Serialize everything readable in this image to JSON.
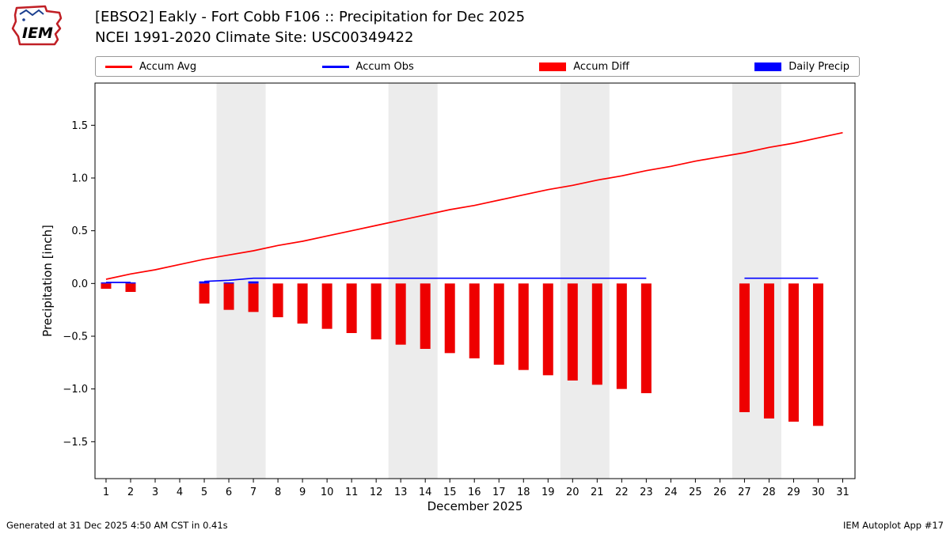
{
  "header": {
    "logo_text": "IEM",
    "title_line1": "[EBSO2] Eakly - Fort Cobb F106 :: Precipitation for Dec 2025",
    "title_line2": "NCEI 1991-2020 Climate Site: USC00349422"
  },
  "legend": {
    "items": [
      {
        "label": "Accum Avg",
        "type": "line",
        "color": "#ff0000"
      },
      {
        "label": "Accum Obs",
        "type": "line",
        "color": "#0000ff"
      },
      {
        "label": "Accum Diff",
        "type": "bar",
        "color": "#ff0000"
      },
      {
        "label": "Daily Precip",
        "type": "bar",
        "color": "#0000ff"
      }
    ]
  },
  "chart_data": {
    "type": "mixed",
    "title": "[EBSO2] Eakly - Fort Cobb F106 :: Precipitation for Dec 2025",
    "subtitle": "NCEI 1991-2020 Climate Site: USC00349422",
    "xlabel": "December 2025",
    "ylabel": "Precipitation [inch]",
    "ylim": [
      -1.85,
      1.9
    ],
    "yticks": [
      {
        "v": -1.5,
        "label": "−1.5"
      },
      {
        "v": -1.0,
        "label": "−1.0"
      },
      {
        "v": -0.5,
        "label": "−0.5"
      },
      {
        "v": 0.0,
        "label": "0.0"
      },
      {
        "v": 0.5,
        "label": "0.5"
      },
      {
        "v": 1.0,
        "label": "1.0"
      },
      {
        "v": 1.5,
        "label": "1.5"
      }
    ],
    "days": [
      1,
      2,
      3,
      4,
      5,
      6,
      7,
      8,
      9,
      10,
      11,
      12,
      13,
      14,
      15,
      16,
      17,
      18,
      19,
      20,
      21,
      22,
      23,
      24,
      25,
      26,
      27,
      28,
      29,
      30,
      31
    ],
    "weekend_bands": [
      [
        5.5,
        7.5
      ],
      [
        12.5,
        14.5
      ],
      [
        19.5,
        21.5
      ],
      [
        26.5,
        28.5
      ]
    ],
    "band_color": "#ececec",
    "series": [
      {
        "name": "Accum Avg",
        "type": "line",
        "color": "#ff0000",
        "values": [
          0.04,
          0.09,
          0.13,
          0.18,
          0.23,
          0.27,
          0.31,
          0.36,
          0.4,
          0.45,
          0.5,
          0.55,
          0.6,
          0.65,
          0.7,
          0.74,
          0.79,
          0.84,
          0.89,
          0.93,
          0.98,
          1.02,
          1.07,
          1.11,
          1.16,
          1.2,
          1.24,
          1.29,
          1.33,
          1.38,
          1.43
        ]
      },
      {
        "name": "Accum Obs",
        "type": "line",
        "color": "#0000ff",
        "values": [
          0.01,
          0.01,
          null,
          null,
          0.02,
          0.03,
          0.05,
          0.05,
          0.05,
          0.05,
          0.05,
          0.05,
          0.05,
          0.05,
          0.05,
          0.05,
          0.05,
          0.05,
          0.05,
          0.05,
          0.05,
          0.05,
          0.05,
          null,
          null,
          null,
          0.05,
          0.05,
          0.05,
          0.05,
          null
        ]
      },
      {
        "name": "Accum Diff",
        "type": "bar",
        "color": "#ee0000",
        "values": [
          -0.05,
          -0.08,
          null,
          null,
          -0.19,
          -0.25,
          -0.27,
          -0.32,
          -0.38,
          -0.43,
          -0.47,
          -0.53,
          -0.58,
          -0.62,
          -0.66,
          -0.71,
          -0.77,
          -0.82,
          -0.87,
          -0.92,
          -0.96,
          -1.0,
          -1.04,
          null,
          null,
          null,
          -1.22,
          -1.28,
          -1.31,
          -1.35,
          null
        ]
      },
      {
        "name": "Daily Precip",
        "type": "bar",
        "color": "#0000ff",
        "values": [
          0.01,
          0.01,
          0,
          0,
          0.02,
          0.01,
          0.02,
          0,
          0,
          0,
          0,
          0,
          0,
          0,
          0,
          0,
          0,
          0,
          0,
          0,
          0,
          0,
          0,
          0,
          0,
          0,
          0,
          0,
          0,
          0,
          0
        ]
      }
    ]
  },
  "footer": {
    "left": "Generated at 31 Dec 2025 4:50 AM CST in 0.41s",
    "right": "IEM Autoplot App #17"
  }
}
